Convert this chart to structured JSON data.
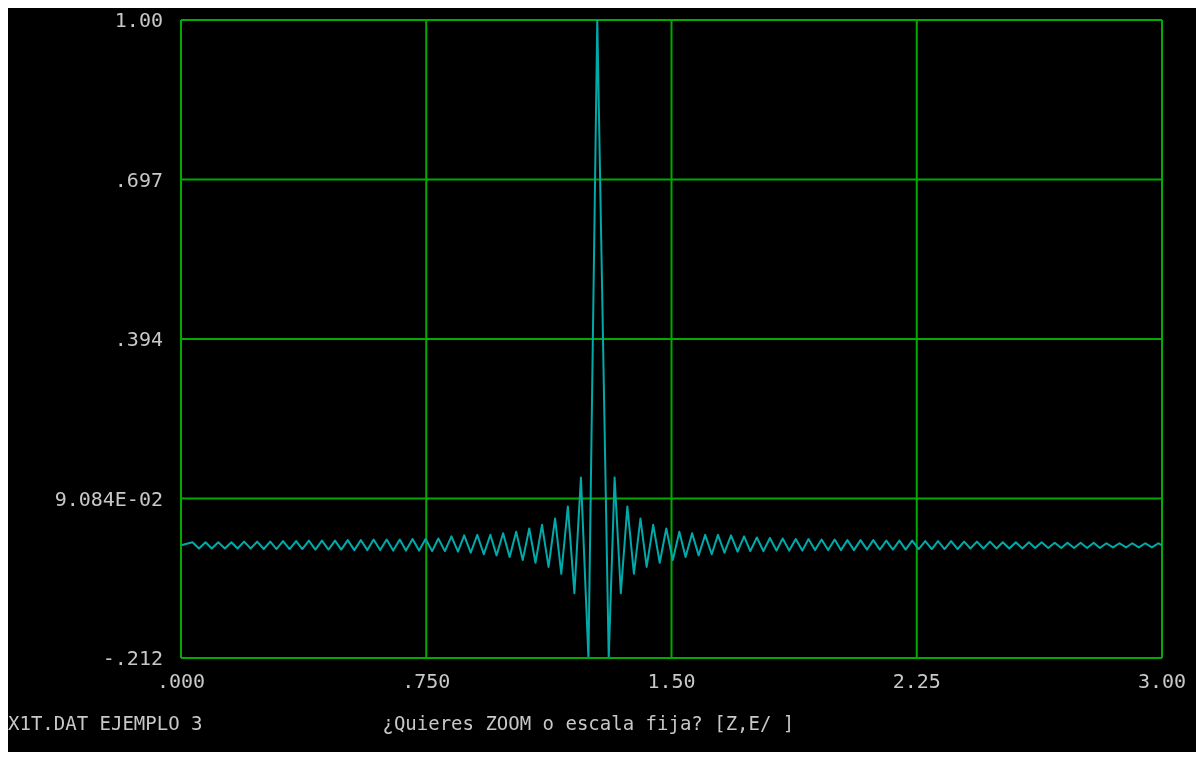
{
  "chart_data": {
    "type": "line",
    "x": [
      0.0,
      0.035,
      0.055,
      0.075,
      0.094,
      0.114,
      0.134,
      0.154,
      0.173,
      0.193,
      0.213,
      0.233,
      0.253,
      0.273,
      0.292,
      0.312,
      0.332,
      0.352,
      0.371,
      0.391,
      0.411,
      0.431,
      0.451,
      0.471,
      0.49,
      0.51,
      0.53,
      0.55,
      0.57,
      0.589,
      0.609,
      0.629,
      0.649,
      0.669,
      0.688,
      0.708,
      0.728,
      0.748,
      0.768,
      0.787,
      0.807,
      0.827,
      0.847,
      0.866,
      0.886,
      0.906,
      0.926,
      0.946,
      0.965,
      0.985,
      1.005,
      1.025,
      1.045,
      1.065,
      1.084,
      1.104,
      1.124,
      1.144,
      1.163,
      1.183,
      1.203,
      1.223,
      1.246,
      1.273,
      1.308,
      1.326,
      1.345,
      1.365,
      1.385,
      1.405,
      1.424,
      1.444,
      1.464,
      1.484,
      1.504,
      1.524,
      1.543,
      1.563,
      1.583,
      1.603,
      1.623,
      1.642,
      1.662,
      1.682,
      1.702,
      1.722,
      1.741,
      1.761,
      1.781,
      1.801,
      1.821,
      1.84,
      1.86,
      1.88,
      1.9,
      1.919,
      1.939,
      1.959,
      1.979,
      1.999,
      2.018,
      2.038,
      2.058,
      2.078,
      2.098,
      2.117,
      2.137,
      2.157,
      2.177,
      2.197,
      2.216,
      2.236,
      2.256,
      2.276,
      2.296,
      2.315,
      2.335,
      2.355,
      2.375,
      2.395,
      2.414,
      2.434,
      2.454,
      2.474,
      2.494,
      2.513,
      2.533,
      2.553,
      2.573,
      2.593,
      2.612,
      2.632,
      2.652,
      2.672,
      2.692,
      2.711,
      2.731,
      2.751,
      2.771,
      2.791,
      2.81,
      2.83,
      2.85,
      2.87,
      2.89,
      2.909,
      2.929,
      2.949,
      2.969,
      2.989,
      3.0
    ],
    "series": [
      {
        "color": "#00aaaa",
        "values": [
          0.002,
          0.008,
          -0.004,
          0.008,
          -0.004,
          0.008,
          -0.004,
          0.008,
          -0.004,
          0.009,
          -0.004,
          0.009,
          -0.005,
          0.009,
          -0.005,
          0.01,
          -0.005,
          0.01,
          -0.005,
          0.011,
          -0.006,
          0.011,
          -0.006,
          0.011,
          -0.006,
          0.012,
          -0.007,
          0.012,
          -0.007,
          0.013,
          -0.007,
          0.013,
          -0.008,
          0.013,
          -0.008,
          0.014,
          -0.008,
          0.014,
          -0.009,
          0.015,
          -0.009,
          0.019,
          -0.01,
          0.021,
          -0.012,
          0.022,
          -0.015,
          0.022,
          -0.017,
          0.025,
          -0.02,
          0.028,
          -0.026,
          0.034,
          -0.031,
          0.041,
          -0.039,
          0.053,
          -0.052,
          0.076,
          -0.089,
          0.131,
          -0.212,
          1.0,
          -0.212,
          0.131,
          -0.089,
          0.076,
          -0.052,
          0.053,
          -0.039,
          0.041,
          -0.031,
          0.034,
          -0.026,
          0.028,
          -0.02,
          0.025,
          -0.017,
          0.022,
          -0.015,
          0.022,
          -0.012,
          0.021,
          -0.01,
          0.019,
          -0.009,
          0.017,
          -0.009,
          0.016,
          -0.008,
          0.015,
          -0.008,
          0.014,
          -0.008,
          0.014,
          -0.007,
          0.013,
          -0.007,
          0.013,
          -0.007,
          0.012,
          -0.007,
          0.012,
          -0.006,
          0.012,
          -0.006,
          0.011,
          -0.006,
          0.011,
          -0.006,
          0.011,
          -0.005,
          0.01,
          -0.005,
          0.01,
          -0.005,
          0.01,
          -0.005,
          0.009,
          -0.004,
          0.009,
          -0.004,
          0.009,
          -0.004,
          0.008,
          -0.004,
          0.008,
          -0.004,
          0.008,
          -0.003,
          0.008,
          -0.003,
          0.007,
          -0.003,
          0.007,
          -0.003,
          0.007,
          -0.003,
          0.007,
          -0.003,
          0.006,
          -0.002,
          0.006,
          -0.002,
          0.006,
          -0.002,
          0.006,
          -0.002,
          0.006,
          0.002
        ]
      }
    ],
    "xlim": [
      0,
      3
    ],
    "xticks": [
      {
        "value": 0,
        "label": ".000"
      },
      {
        "value": 0.75,
        "label": ".750"
      },
      {
        "value": 1.5,
        "label": "1.50"
      },
      {
        "value": 2.25,
        "label": "2.25"
      },
      {
        "value": 3,
        "label": "3.00"
      }
    ],
    "ylim": [
      -0.212,
      1.0
    ],
    "yticks": [
      {
        "value": -0.212,
        "label": "-.212"
      },
      {
        "value": 0.09084,
        "label": "9.084E-02"
      },
      {
        "value": 0.394,
        "label": ".394"
      },
      {
        "value": 0.697,
        "label": ".697"
      },
      {
        "value": 1.0,
        "label": "1.00"
      }
    ],
    "grid": true,
    "annotations": [
      "X1T.DAT EJEMPLO 3",
      "¿Quieres ZOOM o escala fija? [Z,E/ ]"
    ]
  }
}
